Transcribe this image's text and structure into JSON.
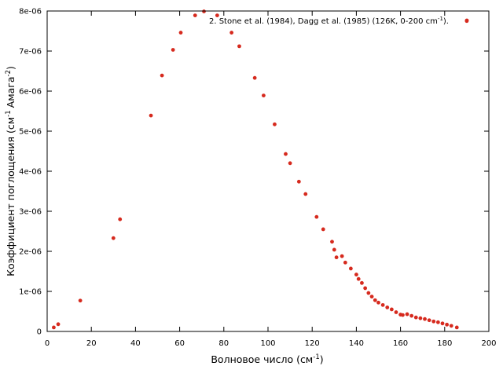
{
  "chart_data": {
    "type": "scatter",
    "title": "",
    "xlabel_main": "Волновое число (см",
    "xlabel_sup": "-1",
    "xlabel_end": ")",
    "ylabel_main": "Коэффициент поглощения (см",
    "ylabel_sup1": "-1",
    "ylabel_mid": "Амага",
    "ylabel_sup2": "-2",
    "ylabel_end": ")",
    "xlim": [
      0,
      200
    ],
    "ylim": [
      0,
      8e-06
    ],
    "x_ticks": [
      0,
      20,
      40,
      60,
      80,
      100,
      120,
      140,
      160,
      180,
      200
    ],
    "x_tick_labels": [
      "0",
      "20",
      "40",
      "60",
      "80",
      "100",
      "120",
      "140",
      "160",
      "180",
      "200"
    ],
    "y_ticks": [
      0,
      1e-06,
      2e-06,
      3e-06,
      4e-06,
      5e-06,
      6e-06,
      7e-06,
      8e-06
    ],
    "y_tick_labels": [
      "0",
      "1e-06",
      "2e-06",
      "3e-06",
      "4e-06",
      "5e-06",
      "6e-06",
      "7e-06",
      "8e-06"
    ],
    "grid": false,
    "legend_position": "top-right",
    "series": [
      {
        "name": "2. Stone et al. (1984), Dagg et al. (1985) (126K, 0-200 cm",
        "name_sup": "-1",
        "name_end": ").",
        "color": "#d62a1e",
        "x": [
          3,
          5,
          15,
          30,
          33,
          47,
          52,
          57,
          60.5,
          67,
          71,
          77,
          83.5,
          87,
          94,
          98,
          103,
          108,
          110,
          114,
          117,
          122,
          125,
          129,
          130,
          131,
          133.5,
          135,
          137.5,
          140,
          141,
          142.5,
          144,
          145.5,
          147,
          148.5,
          150,
          152,
          154,
          156,
          158,
          160,
          161,
          163,
          165,
          167,
          169,
          171,
          173,
          175,
          177,
          179,
          181,
          183,
          185.5,
          190
        ],
        "y": [
          1e-07,
          1.8e-07,
          7.7e-07,
          2.33e-06,
          2.8e-06,
          5.39e-06,
          6.39e-06,
          7.03e-06,
          7.46e-06,
          7.89e-06,
          7.99e-06,
          7.89e-06,
          7.46e-06,
          7.12e-06,
          6.33e-06,
          5.89e-06,
          5.17e-06,
          4.43e-06,
          4.2e-06,
          3.74e-06,
          3.43e-06,
          2.86e-06,
          2.55e-06,
          2.24e-06,
          2.04e-06,
          1.85e-06,
          1.88e-06,
          1.72e-06,
          1.57e-06,
          1.42e-06,
          1.31e-06,
          1.21e-06,
          1.08e-06,
          9.6e-07,
          8.7e-07,
          7.8e-07,
          7.2e-07,
          6.6e-07,
          6e-07,
          5.5e-07,
          4.8e-07,
          4.2e-07,
          4.1e-07,
          4.3e-07,
          3.9e-07,
          3.5e-07,
          3.3e-07,
          3.1e-07,
          2.8e-07,
          2.5e-07,
          2.3e-07,
          2e-07,
          1.7e-07,
          1.4e-07,
          1e-07,
          7.75e-06
        ]
      }
    ]
  }
}
